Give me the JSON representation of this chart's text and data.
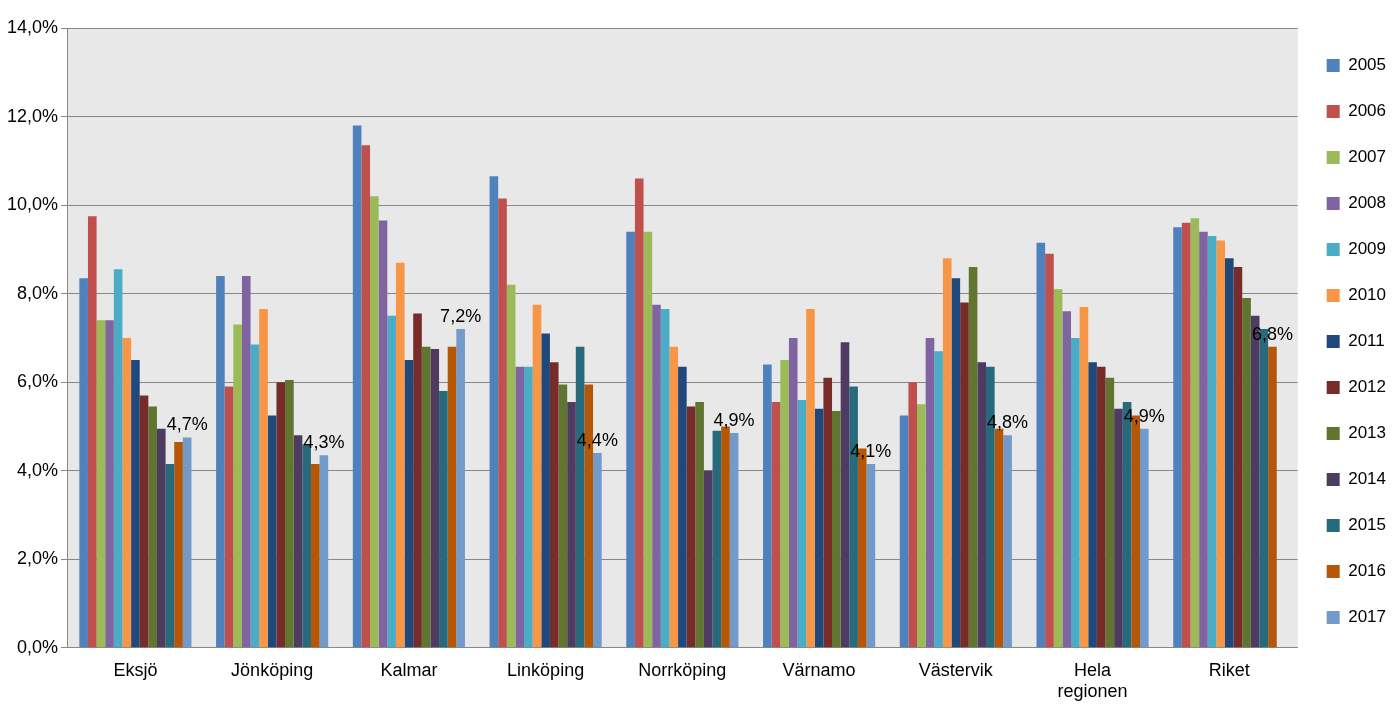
{
  "chart_data": {
    "type": "bar",
    "categories": [
      "Eksjö",
      "Jönköping",
      "Kalmar",
      "Linköping",
      "Norrköping",
      "Värnamo",
      "Västervik",
      "Hela regionen",
      "Riket"
    ],
    "series": [
      {
        "name": "2005",
        "color": "#4f81bd",
        "values": [
          8.35,
          8.4,
          11.8,
          10.65,
          9.4,
          6.4,
          5.25,
          9.15,
          9.5
        ]
      },
      {
        "name": "2006",
        "color": "#c0504d",
        "values": [
          9.75,
          5.9,
          11.35,
          10.15,
          10.6,
          5.55,
          6.0,
          8.9,
          9.6
        ]
      },
      {
        "name": "2007",
        "color": "#9bbb59",
        "values": [
          7.4,
          7.3,
          10.2,
          8.2,
          9.4,
          6.5,
          5.5,
          8.1,
          9.7
        ]
      },
      {
        "name": "2008",
        "color": "#8064a2",
        "values": [
          7.4,
          8.4,
          9.65,
          6.35,
          7.75,
          7.0,
          7.0,
          7.6,
          9.4
        ]
      },
      {
        "name": "2009",
        "color": "#4bacc6",
        "values": [
          8.55,
          6.85,
          7.5,
          6.35,
          7.65,
          5.6,
          6.7,
          7.0,
          9.3
        ]
      },
      {
        "name": "2010",
        "color": "#f79646",
        "values": [
          7.0,
          7.65,
          8.7,
          7.75,
          6.8,
          7.65,
          8.8,
          7.7,
          9.2
        ]
      },
      {
        "name": "2011",
        "color": "#1f497d",
        "values": [
          6.5,
          5.25,
          6.5,
          7.1,
          6.35,
          5.4,
          8.35,
          6.45,
          8.8
        ]
      },
      {
        "name": "2012",
        "color": "#772c2a",
        "values": [
          5.7,
          6.0,
          7.55,
          6.45,
          5.45,
          6.1,
          7.8,
          6.35,
          8.6
        ]
      },
      {
        "name": "2013",
        "color": "#5f7530",
        "values": [
          5.45,
          6.05,
          6.8,
          5.95,
          5.55,
          5.35,
          8.6,
          6.1,
          7.9
        ]
      },
      {
        "name": "2014",
        "color": "#4d3b62",
        "values": [
          4.95,
          4.8,
          6.75,
          5.55,
          4.0,
          6.9,
          6.45,
          5.4,
          7.5
        ]
      },
      {
        "name": "2015",
        "color": "#276a7c",
        "values": [
          4.15,
          4.6,
          5.8,
          6.8,
          4.9,
          5.9,
          6.35,
          5.55,
          7.2
        ]
      },
      {
        "name": "2016",
        "color": "#b65708",
        "values": [
          4.65,
          4.15,
          6.8,
          5.95,
          5.0,
          4.5,
          4.95,
          5.25,
          6.8
        ],
        "value_labels": [
          null,
          null,
          null,
          null,
          null,
          null,
          null,
          null,
          "6,8%"
        ]
      },
      {
        "name": "2017",
        "color": "#729aca",
        "values": [
          4.75,
          4.35,
          7.2,
          4.4,
          4.85,
          4.15,
          4.8,
          4.95,
          null
        ],
        "value_labels": [
          "4,7%",
          "4,3%",
          "7,2%",
          "4,4%",
          "4,9%",
          "4,1%",
          "4,8%",
          "4,9%",
          null
        ]
      }
    ],
    "ylim": [
      0,
      14
    ],
    "yticks": [
      {
        "value": 0,
        "label": "0,0%"
      },
      {
        "value": 2,
        "label": "2,0%"
      },
      {
        "value": 4,
        "label": "4,0%"
      },
      {
        "value": 6,
        "label": "6,0%"
      },
      {
        "value": 8,
        "label": "8,0%"
      },
      {
        "value": 10,
        "label": "10,0%"
      },
      {
        "value": 12,
        "label": "12,0%"
      },
      {
        "value": 14,
        "label": "14,0%"
      }
    ],
    "grid": "y",
    "legend": "right"
  }
}
